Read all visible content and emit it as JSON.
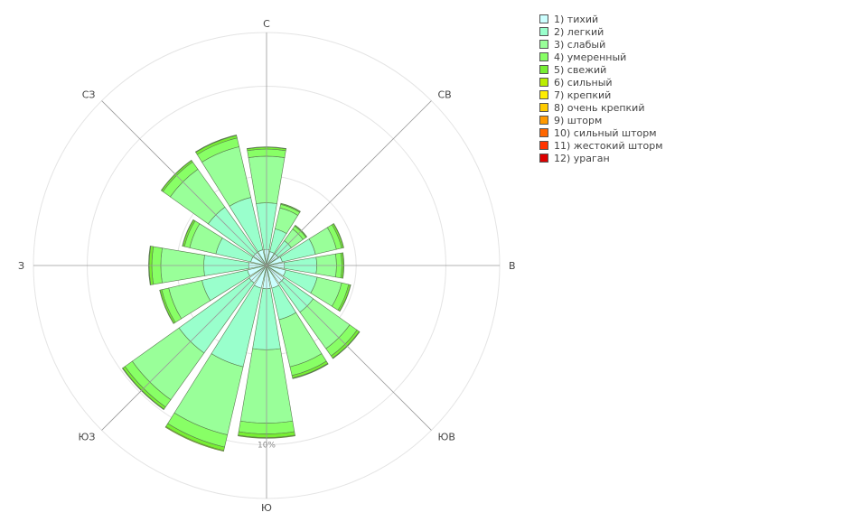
{
  "chart_data": {
    "type": "wind-rose",
    "directions": [
      "С",
      "СВ",
      "В",
      "ЮВ",
      "Ю",
      "ЮЗ",
      "З",
      "СЗ"
    ],
    "sectors_deg": [
      0,
      22.5,
      45,
      67.5,
      90,
      112.5,
      135,
      157.5,
      180,
      202.5,
      225,
      247.5,
      270,
      292.5,
      315,
      337.5
    ],
    "radial_tick_label": "10%",
    "radial_ticks_pct": [
      5,
      10
    ],
    "radial_max_pct": 13,
    "series": [
      {
        "name": "1) тихий",
        "color": "#ccffff",
        "values": [
          0.9,
          0.8,
          0.8,
          0.9,
          1.0,
          1.1,
          1.2,
          1.3,
          1.3,
          1.3,
          1.2,
          1.1,
          1.0,
          0.9,
          0.9,
          0.9
        ]
      },
      {
        "name": "2) легкий",
        "color": "#99ffcc",
        "values": [
          2.6,
          1.3,
          0.9,
          1.9,
          1.8,
          1.8,
          2.0,
          1.8,
          3.4,
          4.5,
          4.8,
          2.6,
          2.5,
          2.0,
          3.1,
          3.0
        ]
      },
      {
        "name": "3) слабый",
        "color": "#99ff99",
        "values": [
          2.6,
          1.2,
          0.8,
          1.2,
          1.1,
          1.4,
          2.5,
          2.7,
          4.1,
          3.9,
          3.2,
          1.9,
          2.4,
          1.5,
          2.6,
          2.9
        ]
      },
      {
        "name": "4) умеренный",
        "color": "#88ff66",
        "values": [
          0.4,
          0.2,
          0.2,
          0.3,
          0.3,
          0.4,
          0.5,
          0.5,
          0.6,
          0.7,
          0.5,
          0.4,
          0.5,
          0.3,
          0.5,
          0.5
        ]
      },
      {
        "name": "5) свежий",
        "color": "#77ee33",
        "values": [
          0.1,
          0.05,
          0.05,
          0.1,
          0.1,
          0.1,
          0.15,
          0.15,
          0.2,
          0.2,
          0.15,
          0.1,
          0.15,
          0.1,
          0.1,
          0.15
        ]
      },
      {
        "name": "6) сильный",
        "color": "#bbee00",
        "values": [
          0.02,
          0.01,
          0.01,
          0.02,
          0.02,
          0.02,
          0.03,
          0.03,
          0.04,
          0.04,
          0.03,
          0.02,
          0.03,
          0.02,
          0.02,
          0.03
        ]
      },
      {
        "name": "7) крепкий",
        "color": "#ffee00",
        "values": [
          0,
          0,
          0,
          0,
          0,
          0,
          0,
          0,
          0,
          0,
          0,
          0,
          0,
          0,
          0,
          0
        ]
      },
      {
        "name": "8) очень крепкий",
        "color": "#ffcc00",
        "values": [
          0,
          0,
          0,
          0,
          0,
          0,
          0,
          0,
          0,
          0,
          0,
          0,
          0,
          0,
          0,
          0
        ]
      },
      {
        "name": "9) шторм",
        "color": "#ff9900",
        "values": [
          0,
          0,
          0,
          0,
          0,
          0,
          0,
          0,
          0,
          0,
          0,
          0,
          0,
          0,
          0,
          0
        ]
      },
      {
        "name": "10) сильный шторм",
        "color": "#ff6600",
        "values": [
          0,
          0,
          0,
          0,
          0,
          0,
          0,
          0,
          0,
          0,
          0,
          0,
          0,
          0,
          0,
          0
        ]
      },
      {
        "name": "11) жестокий шторм",
        "color": "#ff3300",
        "values": [
          0,
          0,
          0,
          0,
          0,
          0,
          0,
          0,
          0,
          0,
          0,
          0,
          0,
          0,
          0,
          0
        ]
      },
      {
        "name": "12) ураган",
        "color": "#dd0000",
        "values": [
          0,
          0,
          0,
          0,
          0,
          0,
          0,
          0,
          0,
          0,
          0,
          0,
          0,
          0,
          0,
          0
        ]
      }
    ],
    "legend_position": "top-right",
    "grid": true
  }
}
